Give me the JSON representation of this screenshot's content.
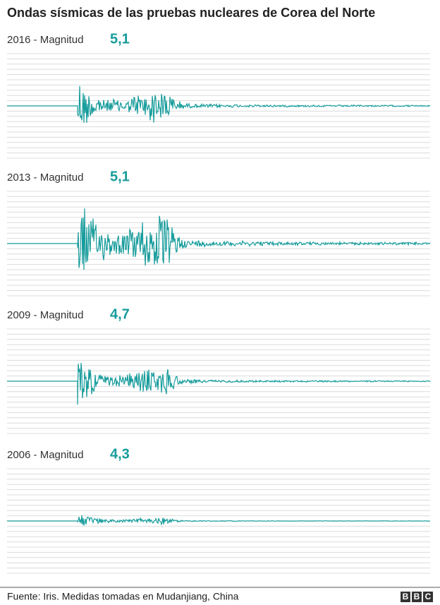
{
  "title": "Ondas sísmicas de las pruebas nucleares de Corea del Norte",
  "panels": [
    {
      "label": "2016 - Magnitud",
      "magnitude": "5,1"
    },
    {
      "label": "2013 - Magnitud",
      "magnitude": "5,1"
    },
    {
      "label": "2009 - Magnitud",
      "magnitude": "4,7"
    },
    {
      "label": "2006 - Magnitud",
      "magnitude": "4,3"
    }
  ],
  "source": "Fuente: Iris. Medidas tomadas en Mudanjiang, China",
  "logo": [
    "B",
    "B",
    "C"
  ]
}
